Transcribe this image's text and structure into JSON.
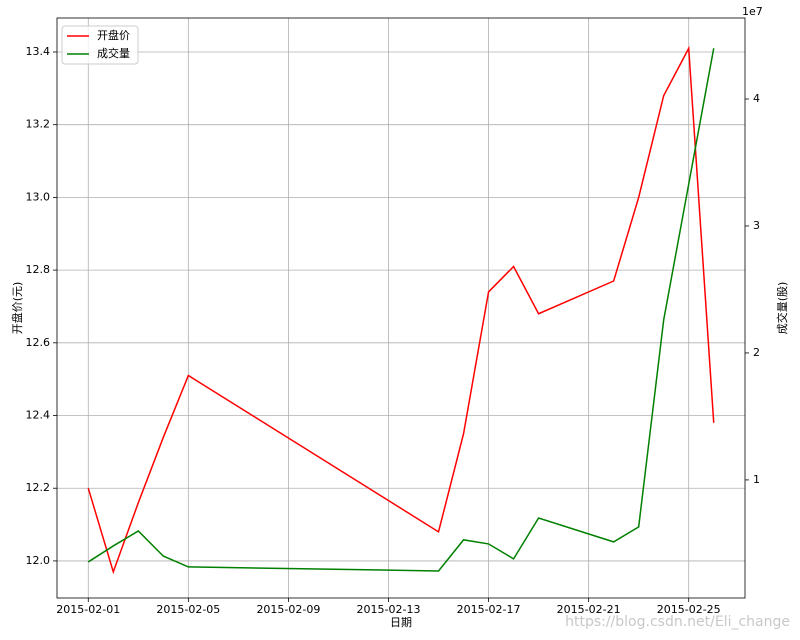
{
  "chart_data": {
    "type": "line",
    "xlabel": "日期",
    "ylabel": "开盘价(元)",
    "y2label": "成交量(股)",
    "y2_offset_label": "1e7",
    "x": [
      "2015-02-01",
      "2015-02-02",
      "2015-02-03",
      "2015-02-04",
      "2015-02-05",
      "2015-02-15",
      "2015-02-16",
      "2015-02-17",
      "2015-02-18",
      "2015-02-19",
      "2015-02-22",
      "2015-02-23",
      "2015-02-24",
      "2015-02-25",
      "2015-02-26"
    ],
    "series": [
      {
        "name": "开盘价",
        "color": "#ff0000",
        "axis": "y",
        "values": [
          12.2,
          11.97,
          12.16,
          12.34,
          12.51,
          12.08,
          12.35,
          12.74,
          12.81,
          12.68,
          12.77,
          13.0,
          13.28,
          13.41,
          12.38
        ]
      },
      {
        "name": "成交量",
        "color": "#008000",
        "axis": "y2",
        "values": [
          3540000,
          4800000,
          5980000,
          4000000,
          3150000,
          2830000,
          5280000,
          4960000,
          3780000,
          7000000,
          5120000,
          6300000,
          22600000,
          33300000,
          44000000
        ]
      }
    ],
    "xlim": [
      "2015-01-30T18:00",
      "2015-02-27T06:00"
    ],
    "xticks": [
      "2015-02-01",
      "2015-02-05",
      "2015-02-09",
      "2015-02-13",
      "2015-02-17",
      "2015-02-21",
      "2015-02-25"
    ],
    "ylim": [
      11.898,
      13.4935
    ],
    "yticks": [
      {
        "value": 12,
        "label": "12.0"
      },
      12.2,
      12.4,
      12.6,
      12.8,
      {
        "value": 13,
        "label": "13.0"
      },
      13.2,
      13.4
    ],
    "y2lim": [
      700000,
      46380000
    ],
    "y2ticks": [
      {
        "value": 10000000,
        "label": "1"
      },
      {
        "value": 20000000,
        "label": "2"
      },
      {
        "value": 30000000,
        "label": "3"
      },
      {
        "value": 40000000,
        "label": "4"
      }
    ],
    "grid": true,
    "legend": "upper left",
    "watermark": "https://blog.csdn.net/Eli_change"
  }
}
